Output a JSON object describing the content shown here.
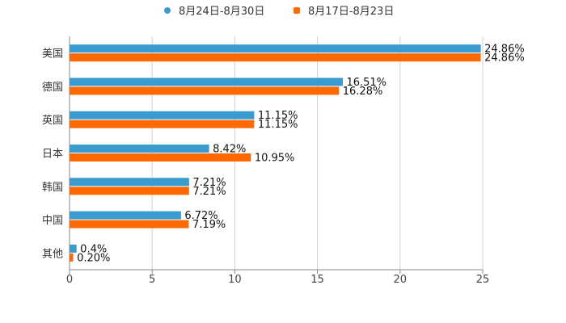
{
  "chart_data": {
    "type": "bar",
    "orientation": "horizontal",
    "title": "",
    "xlabel": "",
    "ylabel": "",
    "xlim": [
      0,
      25
    ],
    "ticks": [
      "0",
      "5",
      "10",
      "15",
      "20",
      "25"
    ],
    "grid": true,
    "legend_position": "top-center",
    "categories": [
      "美国",
      "德国",
      "英国",
      "日本",
      "韩国",
      "中国",
      "其他"
    ],
    "series": [
      {
        "name": "8月24日-8月30日",
        "color": "#3a9bd0",
        "values": [
          24.86,
          16.51,
          11.15,
          8.42,
          7.21,
          6.72,
          0.4
        ],
        "labels": [
          "24.86%",
          "16.51%",
          "11.15%",
          "8.42%",
          "7.21%",
          "6.72%",
          "0.4%"
        ]
      },
      {
        "name": "8月17日-8月23日",
        "color": "#ff6a00",
        "values": [
          24.86,
          16.28,
          11.15,
          10.95,
          7.21,
          7.19,
          0.2
        ],
        "labels": [
          "24.86%",
          "16.28%",
          "11.15%",
          "10.95%",
          "7.21%",
          "7.19%",
          "0.20%"
        ]
      }
    ]
  }
}
